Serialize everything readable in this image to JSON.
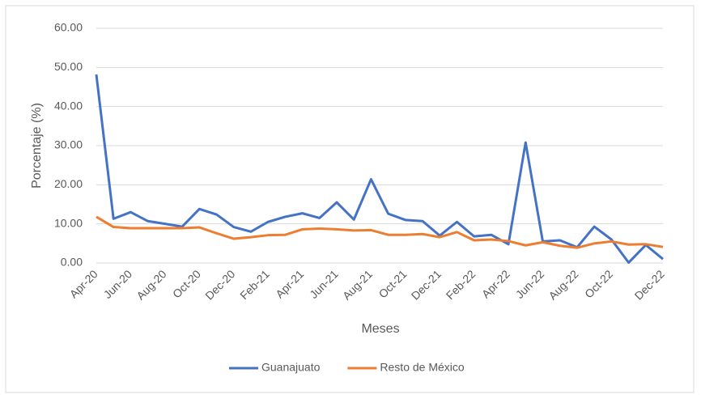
{
  "chart_data": {
    "type": "line",
    "x_label": "Meses",
    "y_label": "Porcentaje (%)",
    "categories": [
      "Apr-20",
      null,
      "Jun-20",
      null,
      "Aug-20",
      null,
      "Oct-20",
      null,
      "Dec-20",
      null,
      "Feb-21",
      null,
      "Apr-21",
      null,
      "Jun-21",
      null,
      "Aug-21",
      null,
      "Oct-21",
      null,
      "Dec-21",
      null,
      "Feb-22",
      null,
      "Apr-22",
      null,
      "Jun-22",
      null,
      "Aug-22",
      null,
      "Oct-22",
      null,
      null,
      "Dec-22"
    ],
    "series": [
      {
        "name": "Guanajuato",
        "color": "#4472c4",
        "values": [
          48.2,
          11.3,
          13.0,
          10.7,
          10.0,
          9.3,
          13.8,
          12.4,
          9.2,
          8.0,
          10.5,
          11.8,
          12.7,
          11.5,
          15.5,
          11.1,
          21.4,
          12.6,
          11.0,
          10.7,
          7.0,
          10.5,
          6.8,
          7.2,
          4.8,
          30.8,
          5.5,
          5.8,
          4.0,
          9.3,
          6.0,
          0.1,
          4.6,
          1.0
        ]
      },
      {
        "name": "Resto de México",
        "color": "#ed7d31",
        "values": [
          11.8,
          9.2,
          8.9,
          8.9,
          8.9,
          8.9,
          9.1,
          7.6,
          6.2,
          6.6,
          7.1,
          7.2,
          8.6,
          8.8,
          8.6,
          8.3,
          8.4,
          7.2,
          7.2,
          7.4,
          6.6,
          7.9,
          5.8,
          6.0,
          5.6,
          4.5,
          5.3,
          4.4,
          3.9,
          5.0,
          5.5,
          4.7,
          4.8,
          4.1
        ]
      }
    ],
    "ylim": [
      0,
      60
    ],
    "yticks": [
      {
        "value": 0,
        "label": "0.00"
      },
      {
        "value": 10,
        "label": "10.00"
      },
      {
        "value": 20,
        "label": "20.00"
      },
      {
        "value": 30,
        "label": "30.00"
      },
      {
        "value": 40,
        "label": "40.00"
      },
      {
        "value": 50,
        "label": "50.00"
      },
      {
        "value": 60,
        "label": "60.00"
      }
    ],
    "grid": true,
    "legend": "bottom"
  }
}
